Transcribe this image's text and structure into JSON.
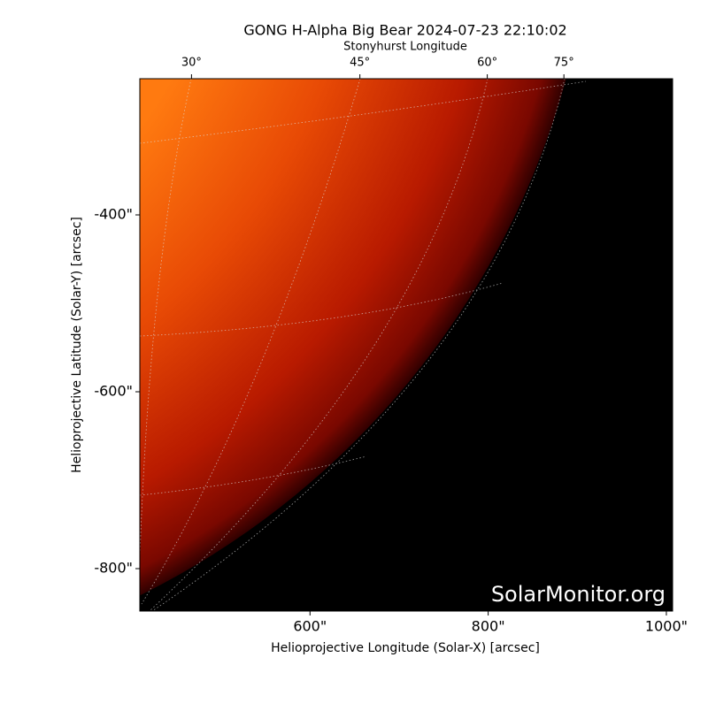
{
  "chart_data": {
    "type": "image",
    "title": "GONG H-Alpha Big Bear 2024-07-23 22:10:02",
    "xlabel": "Helioprojective Longitude (Solar-X) [arcsec]",
    "ylabel": "Helioprojective Latitude (Solar-Y) [arcsec]",
    "top_axis_label": "Stonyhurst Longitude",
    "xlim": [
      409,
      1007
    ],
    "ylim": [
      -848,
      -246
    ],
    "xticks": [
      {
        "value": 600,
        "label": "600\""
      },
      {
        "value": 800,
        "label": "800\""
      },
      {
        "value": 1000,
        "label": "1000\""
      }
    ],
    "yticks": [
      {
        "value": -400,
        "label": "-400\""
      },
      {
        "value": -600,
        "label": "-600\""
      },
      {
        "value": -800,
        "label": "-800\""
      }
    ],
    "top_ticks": [
      {
        "value": 467,
        "label": "30°"
      },
      {
        "value": 656,
        "label": "45°"
      },
      {
        "value": 799,
        "label": "60°"
      },
      {
        "value": 885,
        "label": "75°"
      }
    ],
    "watermark": "SolarMonitor.org"
  }
}
